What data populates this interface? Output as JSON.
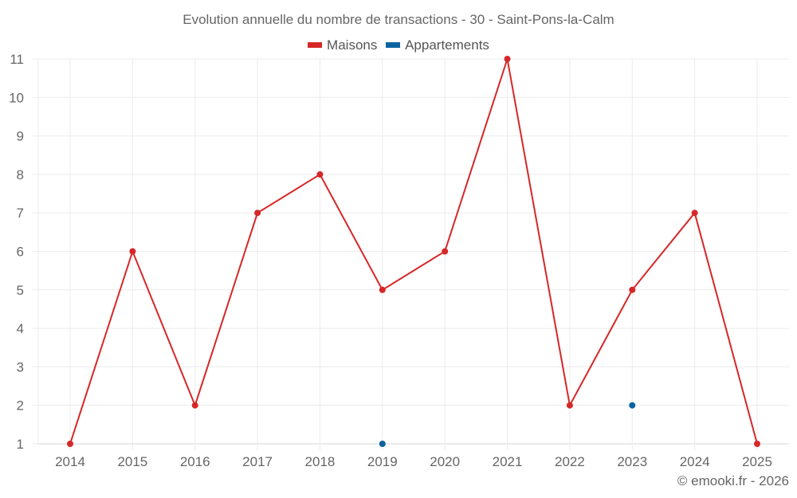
{
  "title": "Evolution annuelle du nombre de transactions - 30 - Saint-Pons-la-Calm",
  "legend": [
    {
      "label": "Maisons",
      "color": "#d62728"
    },
    {
      "label": "Appartements",
      "color": "#0b64a0"
    }
  ],
  "footer": "© emooki.fr - 2026",
  "chart_data": {
    "type": "line",
    "title": "Evolution annuelle du nombre de transactions - 30 - Saint-Pons-la-Calm",
    "xlabel": "",
    "ylabel": "",
    "categories": [
      "2014",
      "2015",
      "2016",
      "2017",
      "2018",
      "2019",
      "2020",
      "2021",
      "2022",
      "2023",
      "2024",
      "2025"
    ],
    "series": [
      {
        "name": "Maisons",
        "color": "#d62728",
        "values": [
          1,
          6,
          2,
          7,
          8,
          5,
          6,
          11,
          2,
          5,
          7,
          1
        ]
      },
      {
        "name": "Appartements",
        "color": "#0b64a0",
        "values": [
          null,
          null,
          null,
          null,
          null,
          1,
          null,
          null,
          null,
          2,
          null,
          null
        ]
      }
    ],
    "yticks": [
      1,
      2,
      3,
      4,
      5,
      6,
      7,
      8,
      9,
      10,
      11
    ],
    "ylim": [
      1,
      11
    ],
    "grid": true,
    "legend_position": "top"
  }
}
